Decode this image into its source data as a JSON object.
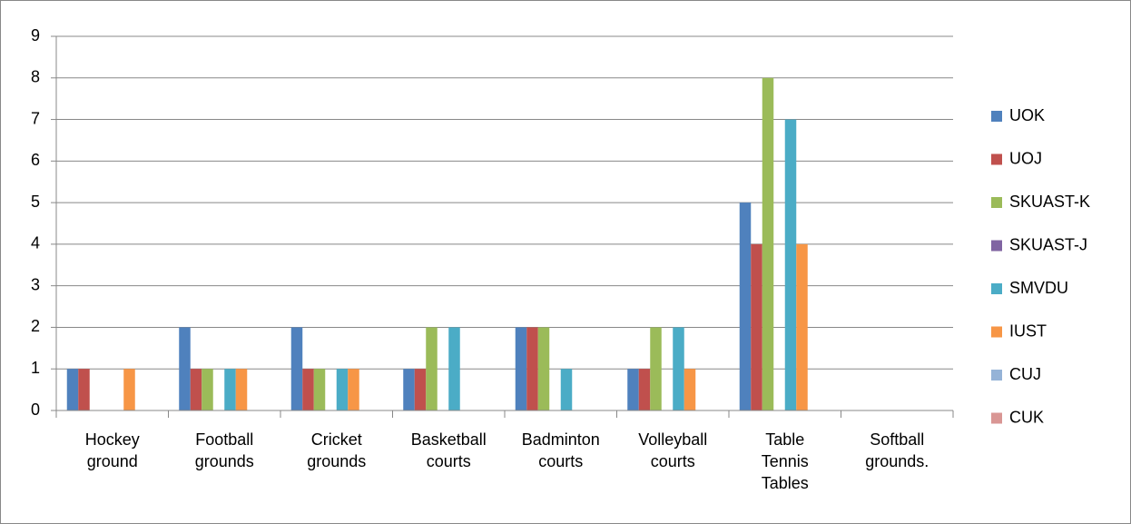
{
  "chart_data": {
    "type": "bar",
    "categories": [
      "Hockey ground",
      "Football grounds",
      "Cricket grounds",
      "Basketball courts",
      "Badminton courts",
      "Volleyball courts",
      "Table Tennis Tables",
      "Softball grounds."
    ],
    "series": [
      {
        "name": "UOK",
        "color": "#4f81bd",
        "values": [
          1,
          2,
          2,
          1,
          2,
          1,
          5,
          0
        ]
      },
      {
        "name": "UOJ",
        "color": "#c0504d",
        "values": [
          1,
          1,
          1,
          1,
          2,
          1,
          4,
          0
        ]
      },
      {
        "name": "SKUAST-K",
        "color": "#9bbb59",
        "values": [
          0,
          1,
          1,
          2,
          2,
          2,
          8,
          0
        ]
      },
      {
        "name": "SKUAST-J",
        "color": "#8064a2",
        "values": [
          0,
          0,
          0,
          0,
          0,
          0,
          0,
          0
        ]
      },
      {
        "name": "SMVDU",
        "color": "#4bacc6",
        "values": [
          0,
          1,
          1,
          2,
          1,
          2,
          7,
          0
        ]
      },
      {
        "name": "IUST",
        "color": "#f79646",
        "values": [
          1,
          1,
          1,
          0,
          0,
          1,
          4,
          0
        ]
      },
      {
        "name": "CUJ",
        "color": "#95b3d7",
        "values": [
          0,
          0,
          0,
          0,
          0,
          0,
          0,
          0
        ]
      },
      {
        "name": "CUK",
        "color": "#d99694",
        "values": [
          0,
          0,
          0,
          0,
          0,
          0,
          0,
          0
        ]
      }
    ],
    "ylim": [
      0,
      9
    ],
    "yticks": [
      0,
      1,
      2,
      3,
      4,
      5,
      6,
      7,
      8,
      9
    ],
    "grid": true,
    "legend": "right"
  }
}
